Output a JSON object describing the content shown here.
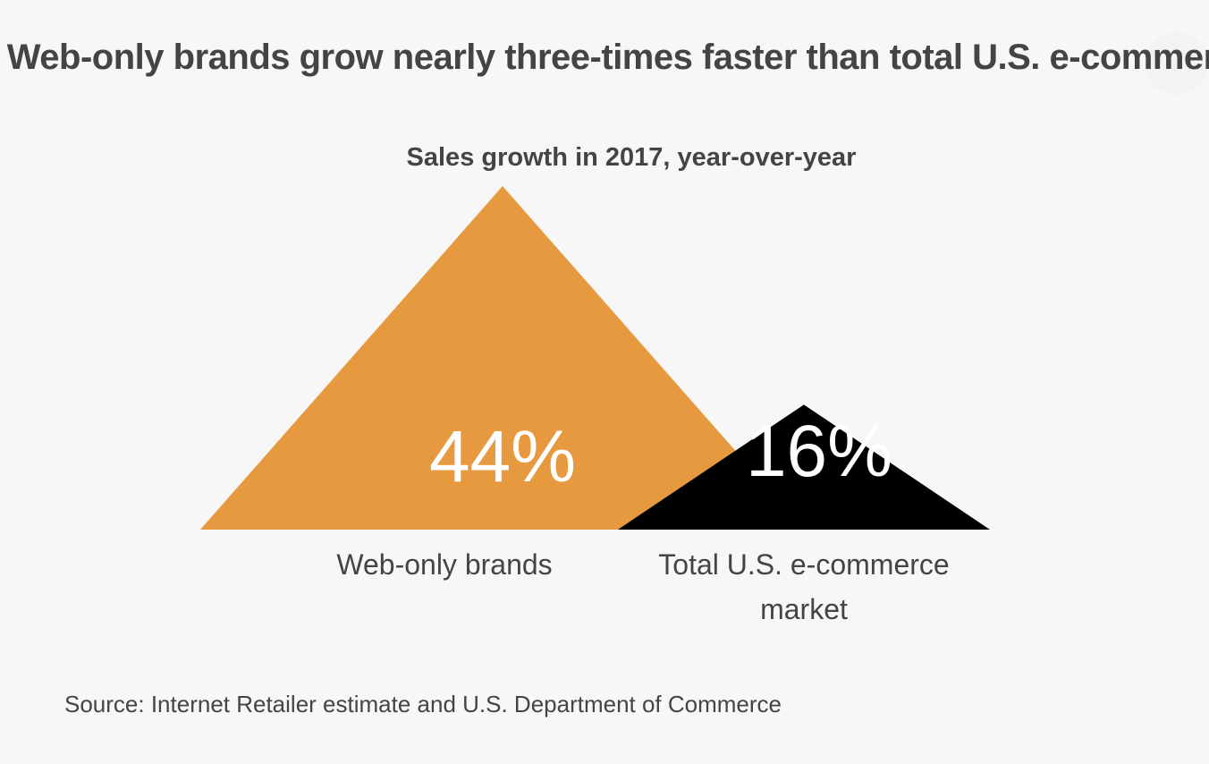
{
  "chart_data": {
    "type": "bar",
    "title": "Web-only brands grow nearly three-times faster than total U.S. e-commerce",
    "subtitle": "Sales growth in 2017, year-over-year",
    "categories": [
      "Web-only brands",
      "Total U.S. e-commerce market"
    ],
    "values": [
      44,
      16
    ],
    "value_labels": [
      "44%",
      "16%"
    ],
    "unit": "%",
    "colors": [
      "#e6993e",
      "#000000"
    ],
    "source": "Source: Internet Retailer estimate and U.S. Department of Commerce"
  }
}
